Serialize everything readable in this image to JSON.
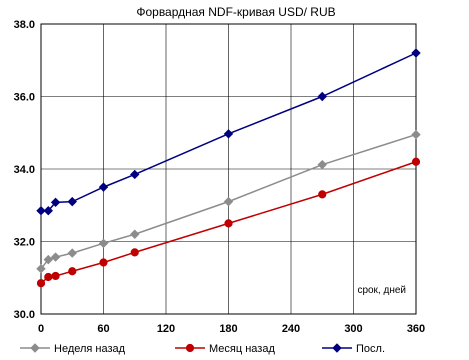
{
  "chart_data": {
    "type": "line",
    "title": "Форвардная NDF-кривая USD/ RUB",
    "annotation": "срок, дней",
    "xlim": [
      0,
      360
    ],
    "ylim": [
      30.0,
      38.0
    ],
    "x_ticks": [
      0,
      60,
      120,
      180,
      240,
      300,
      360
    ],
    "y_ticks": [
      "30.0",
      "32.0",
      "34.0",
      "36.0",
      "38.0"
    ],
    "grid": true,
    "legend_position": "bottom",
    "series": [
      {
        "name": "Неделя назад",
        "color": "#8c8c8c",
        "marker": "diamond",
        "points": [
          [
            0,
            31.25
          ],
          [
            7,
            31.5
          ],
          [
            14,
            31.57
          ],
          [
            30,
            31.68
          ],
          [
            60,
            31.95
          ],
          [
            90,
            32.2
          ],
          [
            180,
            33.1
          ],
          [
            270,
            34.12
          ],
          [
            360,
            34.95
          ]
        ]
      },
      {
        "name": "Месяц назад",
        "color": "#c00000",
        "marker": "circle",
        "points": [
          [
            0,
            30.85
          ],
          [
            7,
            31.02
          ],
          [
            14,
            31.05
          ],
          [
            30,
            31.18
          ],
          [
            60,
            31.42
          ],
          [
            90,
            31.7
          ],
          [
            180,
            32.5
          ],
          [
            270,
            33.3
          ],
          [
            360,
            34.2
          ]
        ]
      },
      {
        "name": "Посл.",
        "color": "#000080",
        "marker": "diamond",
        "points": [
          [
            0,
            32.85
          ],
          [
            7,
            32.85
          ],
          [
            14,
            33.08
          ],
          [
            30,
            33.1
          ],
          [
            60,
            33.5
          ],
          [
            90,
            33.85
          ],
          [
            180,
            34.97
          ],
          [
            270,
            36.0
          ],
          [
            360,
            37.2
          ]
        ]
      }
    ]
  }
}
